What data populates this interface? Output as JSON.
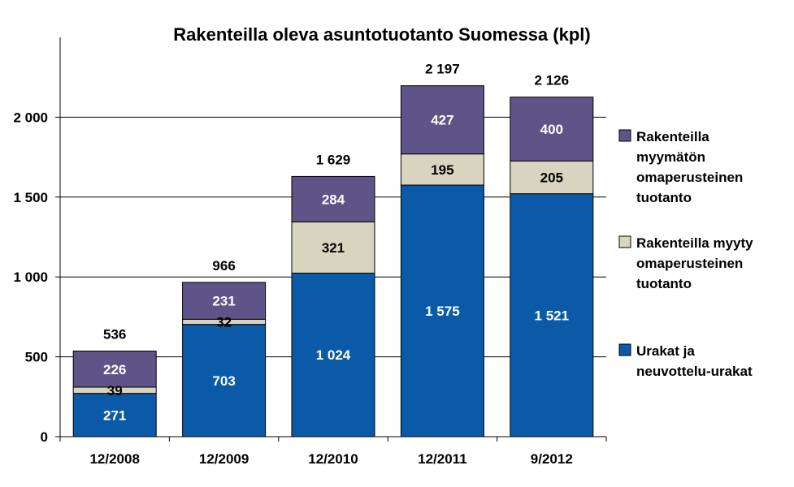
{
  "chart_data": {
    "type": "bar",
    "stacked": true,
    "title": "Rakenteilla oleva asuntotuotanto Suomessa (kpl)",
    "categories": [
      "12/2008",
      "12/2009",
      "12/2010",
      "12/2011",
      "9/2012"
    ],
    "series": [
      {
        "name": "Urakat ja neuvottelu-urakat",
        "legend_lines": [
          "Urakat ja",
          "neuvottelu-urakat"
        ],
        "color": "#0a5aa8",
        "label_color": "#ffffff",
        "values": [
          271,
          703,
          1024,
          1575,
          1521
        ],
        "labels": [
          "271",
          "703",
          "1 024",
          "1 575",
          "1 521"
        ]
      },
      {
        "name": "Rakenteilla myyty omaperusteinen tuotanto",
        "legend_lines": [
          "Rakenteilla myyty",
          "omaperusteinen",
          "tuotanto"
        ],
        "color": "#d8d4c0",
        "label_color": "#000000",
        "values": [
          39,
          32,
          321,
          195,
          205
        ],
        "labels": [
          "39",
          "32",
          "321",
          "195",
          "205"
        ]
      },
      {
        "name": "Rakenteilla myymätön omaperusteinen tuotanto",
        "legend_lines": [
          "Rakenteilla",
          "myymätön",
          "omaperusteinen",
          "tuotanto"
        ],
        "color": "#5e5487",
        "label_color": "#ffffff",
        "values": [
          226,
          231,
          284,
          427,
          400
        ],
        "labels": [
          "226",
          "231",
          "284",
          "427",
          "400"
        ]
      }
    ],
    "totals": [
      536,
      966,
      1629,
      2197,
      2126
    ],
    "total_labels": [
      "536",
      "966",
      "1 629",
      "2 197",
      "2 126"
    ],
    "yticks": [
      0,
      500,
      1000,
      1500,
      2000
    ],
    "ytick_labels": [
      "0",
      "500",
      "1 000",
      "1 500",
      "2 000"
    ],
    "ylim": [
      0,
      2500
    ],
    "grid": true,
    "legend_position": "right"
  }
}
